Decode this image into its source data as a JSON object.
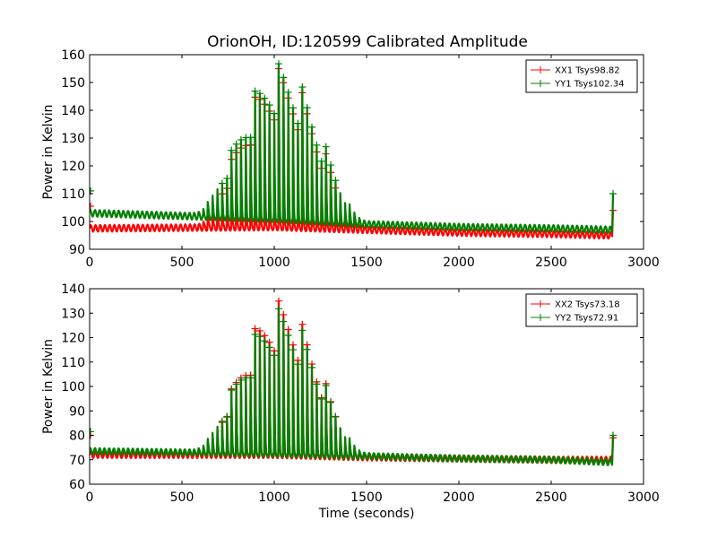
{
  "figure": {
    "title": "OrionOH, ID:120599 Calibrated Amplitude"
  },
  "chart_data": [
    {
      "type": "line",
      "title": "OrionOH, ID:120599 Calibrated Amplitude",
      "xlabel": "",
      "ylabel": "Power in Kelvin",
      "xlim": [
        0,
        3000
      ],
      "ylim": [
        90,
        160
      ],
      "xticks": [
        0,
        500,
        1000,
        1500,
        2000,
        2500,
        3000
      ],
      "yticks": [
        90,
        100,
        110,
        120,
        130,
        140,
        150,
        160
      ],
      "legend_position": "top-right",
      "grid": false,
      "scan": {
        "peak_x": 1030,
        "half_width": 480,
        "ripple_period": 25.6,
        "ripple_amplitude": 1.2,
        "end_x": 2830
      },
      "series": [
        {
          "name": "XX1 Tsys98.82",
          "color": "#ff0000",
          "baseline": [
            [
              0,
              97.5
            ],
            [
              1000,
              98
            ],
            [
              1500,
              97
            ],
            [
              2000,
              96
            ],
            [
              2500,
              95.5
            ],
            [
              2830,
              95
            ]
          ],
          "peak": 155,
          "end_spike": 104
        },
        {
          "name": "YY1 Tsys102.34",
          "color": "#008000",
          "baseline": [
            [
              0,
              103
            ],
            [
              500,
              102
            ],
            [
              1000,
              101
            ],
            [
              1500,
              99
            ],
            [
              2000,
              98
            ],
            [
              2500,
              97.5
            ],
            [
              2830,
              97
            ]
          ],
          "peak": 156,
          "end_spike": 110
        }
      ]
    },
    {
      "type": "line",
      "title": "",
      "xlabel": "Time (seconds)",
      "ylabel": "Power in Kelvin",
      "xlim": [
        0,
        3000
      ],
      "ylim": [
        60,
        140
      ],
      "xticks": [
        0,
        500,
        1000,
        1500,
        2000,
        2500,
        3000
      ],
      "yticks": [
        60,
        70,
        80,
        90,
        100,
        110,
        120,
        130,
        140
      ],
      "legend_position": "top-right",
      "grid": false,
      "scan": {
        "peak_x": 1030,
        "half_width": 480,
        "ripple_period": 25.6,
        "ripple_amplitude": 1.3,
        "end_x": 2830
      },
      "series": [
        {
          "name": "XX2 Tsys73.18",
          "color": "#ff0000",
          "baseline": [
            [
              0,
              72
            ],
            [
              1000,
              72
            ],
            [
              1500,
              71
            ],
            [
              2000,
              70.5
            ],
            [
              2500,
              70
            ],
            [
              2830,
              70
            ]
          ],
          "peak": 135,
          "end_spike": 79
        },
        {
          "name": "YY2 Tsys72.91",
          "color": "#008000",
          "baseline": [
            [
              0,
              73.5
            ],
            [
              1000,
              72.5
            ],
            [
              1500,
              71.5
            ],
            [
              2000,
              70.5
            ],
            [
              2500,
              70
            ],
            [
              2830,
              69
            ]
          ],
          "peak": 131,
          "end_spike": 80
        }
      ]
    }
  ]
}
